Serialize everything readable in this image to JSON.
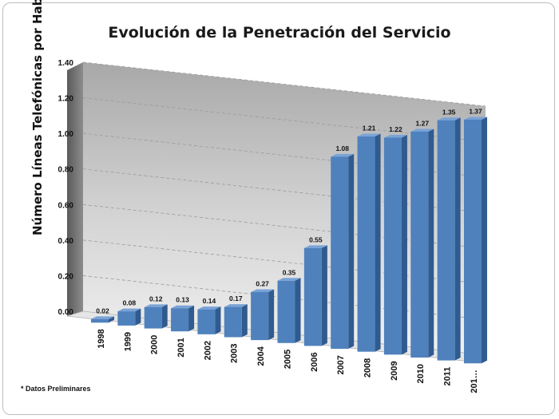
{
  "chart_data": {
    "type": "bar",
    "title": "Evolución de la Penetración del Servicio",
    "ylabel": "Número Líneas Telefónicas por Habitante",
    "xlabel": "",
    "categories": [
      "1998",
      "1999",
      "2000",
      "2001",
      "2002",
      "2003",
      "2004",
      "2005",
      "2006",
      "2007",
      "2008",
      "2009",
      "2010",
      "2011",
      "201…"
    ],
    "values": [
      0.02,
      0.08,
      0.12,
      0.13,
      0.14,
      0.17,
      0.27,
      0.35,
      0.55,
      1.08,
      1.21,
      1.22,
      1.27,
      1.35,
      1.37
    ],
    "data_labels": [
      "0.02",
      "0.08",
      "0.12",
      "0.13",
      "0.14",
      "0.17",
      "0.27",
      "0.35",
      "0.55",
      "1.08",
      "1.21",
      "1.22",
      "1.27",
      "1.35",
      "1.37"
    ],
    "yticks": [
      "0.00",
      "0.20",
      "0.40",
      "0.60",
      "0.80",
      "1.00",
      "1.20",
      "1.40"
    ],
    "ylim": [
      0,
      1.4
    ],
    "grid": true,
    "legend": "none",
    "bar_color": "#4f81bd"
  },
  "footnote": "* Datos Preliminares"
}
